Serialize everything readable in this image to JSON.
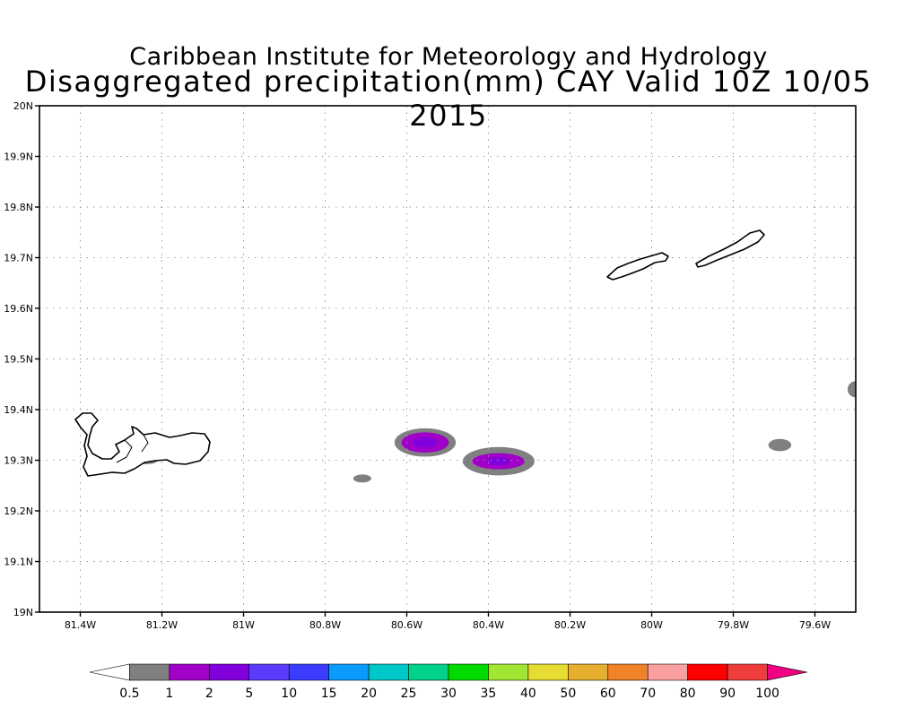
{
  "title": {
    "line1": "Caribbean Institute for Meteorology and Hydrology",
    "line2": "Disaggregated precipitation(mm) CAY Valid 10Z 10/05 2015"
  },
  "map": {
    "lon_range": [
      -81.5,
      -79.5
    ],
    "lat_range": [
      19.0,
      20.0
    ],
    "grid": "dotted",
    "x_ticks": [
      {
        "lon": -81.4,
        "label": "81.4W"
      },
      {
        "lon": -81.2,
        "label": "81.2W"
      },
      {
        "lon": -81.0,
        "label": "81W"
      },
      {
        "lon": -80.8,
        "label": "80.8W"
      },
      {
        "lon": -80.6,
        "label": "80.6W"
      },
      {
        "lon": -80.4,
        "label": "80.4W"
      },
      {
        "lon": -80.2,
        "label": "80.2W"
      },
      {
        "lon": -80.0,
        "label": "80W"
      },
      {
        "lon": -79.8,
        "label": "79.8W"
      },
      {
        "lon": -79.6,
        "label": "79.6W"
      }
    ],
    "y_ticks": [
      {
        "lat": 19.0,
        "label": "19N"
      },
      {
        "lat": 19.1,
        "label": "19.1N"
      },
      {
        "lat": 19.2,
        "label": "19.2N"
      },
      {
        "lat": 19.3,
        "label": "19.3N"
      },
      {
        "lat": 19.4,
        "label": "19.4N"
      },
      {
        "lat": 19.5,
        "label": "19.5N"
      },
      {
        "lat": 19.6,
        "label": "19.6N"
      },
      {
        "lat": 19.7,
        "label": "19.7N"
      },
      {
        "lat": 19.8,
        "label": "19.8N"
      },
      {
        "lat": 19.9,
        "label": "19.9N"
      },
      {
        "lat": 20.0,
        "label": "20N"
      }
    ],
    "precip_cells": [
      {
        "lon": -80.555,
        "lat": 19.335,
        "rlon": 0.075,
        "rlat": 0.028,
        "level": "0.5"
      },
      {
        "lon": -80.555,
        "lat": 19.335,
        "rlon": 0.058,
        "rlat": 0.02,
        "level": "1"
      },
      {
        "lon": -80.555,
        "lat": 19.335,
        "rlon": 0.03,
        "rlat": 0.01,
        "level": "2"
      },
      {
        "lon": -80.375,
        "lat": 19.298,
        "rlon": 0.088,
        "rlat": 0.028,
        "level": "0.5"
      },
      {
        "lon": -80.375,
        "lat": 19.298,
        "rlon": 0.064,
        "rlat": 0.016,
        "level": "1"
      },
      {
        "lon": -80.375,
        "lat": 19.298,
        "rlon": 0.028,
        "rlat": 0.008,
        "level": "2"
      },
      {
        "lon": -80.709,
        "lat": 19.264,
        "rlon": 0.022,
        "rlat": 0.008,
        "level": "0.5"
      },
      {
        "lon": -79.686,
        "lat": 19.33,
        "rlon": 0.028,
        "rlat": 0.012,
        "level": "0.5"
      },
      {
        "lon": -79.5,
        "lat": 19.44,
        "rlon": 0.02,
        "rlat": 0.016,
        "level": "0.5"
      },
      {
        "lon": -81.24,
        "lat": 19.3,
        "rlon": 0.03,
        "rlat": 0.008,
        "level": "0.5"
      }
    ]
  },
  "legend": {
    "levels": [
      {
        "label": "0.5",
        "color": "#ffffff"
      },
      {
        "label": "1",
        "color": "#808080"
      },
      {
        "label": "2",
        "color": "#a000c8"
      },
      {
        "label": "5",
        "color": "#8200dc"
      },
      {
        "label": "10",
        "color": "#5a3cff"
      },
      {
        "label": "15",
        "color": "#3c3cff"
      },
      {
        "label": "20",
        "color": "#0a9bff"
      },
      {
        "label": "25",
        "color": "#00c8c8"
      },
      {
        "label": "30",
        "color": "#00d28c"
      },
      {
        "label": "35",
        "color": "#00dc00"
      },
      {
        "label": "40",
        "color": "#a0e632"
      },
      {
        "label": "50",
        "color": "#e6dc32"
      },
      {
        "label": "60",
        "color": "#e6af2d"
      },
      {
        "label": "70",
        "color": "#f08228"
      },
      {
        "label": "80",
        "color": "#faa0a0"
      },
      {
        "label": "90",
        "color": "#ff0000"
      },
      {
        "label": "100",
        "color": "#f03c3c"
      }
    ],
    "overflow_color": "#f00082",
    "underflow_color": "#ffffff"
  }
}
